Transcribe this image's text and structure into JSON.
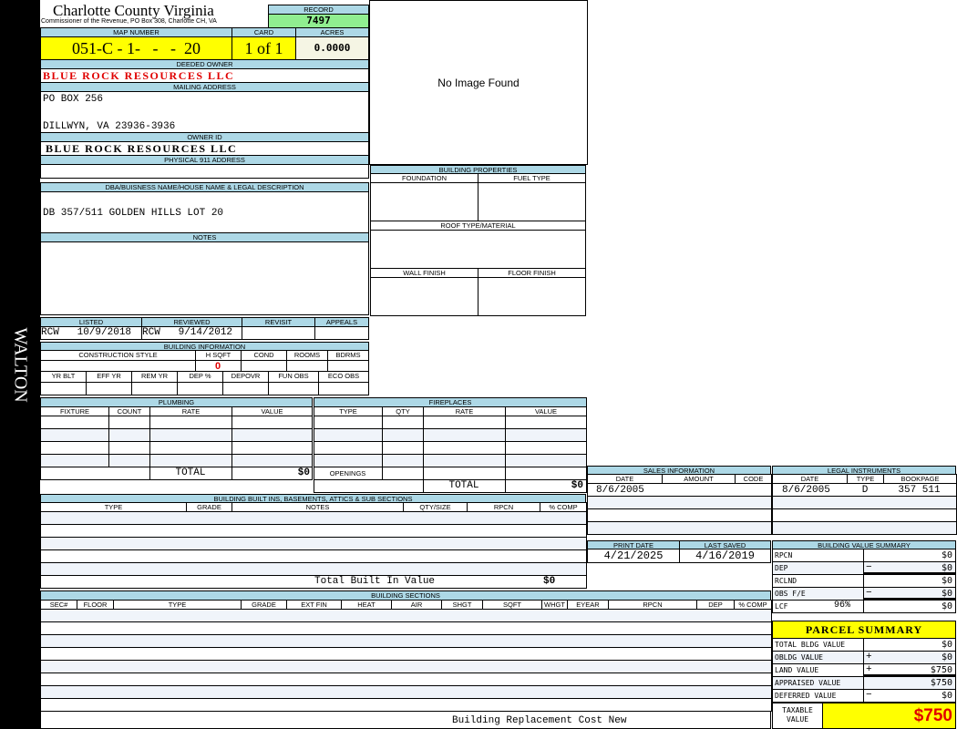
{
  "side_label": "WALTON",
  "header": {
    "title": "Charlotte County Virginia",
    "subtitle": "Commissioner of the Revenue, PO Box 308, Charlotte CH, VA"
  },
  "record": {
    "label": "RECORD",
    "value": "7497"
  },
  "map": {
    "label": "MAP NUMBER",
    "value": "051-C - 1-   -   -  20"
  },
  "card": {
    "label": "CARD",
    "value": "1 of 1"
  },
  "acres": {
    "label": "ACRES",
    "value": "0.0000"
  },
  "deeded_owner": {
    "label": "DEEDED OWNER",
    "value": "BLUE ROCK RESOURCES LLC"
  },
  "mailing": {
    "label": "MAILING ADDRESS",
    "line1": "PO BOX 256",
    "line2": "DILLWYN, VA 23936-3936"
  },
  "owner_id": {
    "label": "OWNER ID",
    "value": "BLUE ROCK RESOURCES LLC"
  },
  "physical": {
    "label": "PHYSICAL 911 ADDRESS",
    "value": ""
  },
  "image": {
    "text": "No Image Found"
  },
  "dba": {
    "label": "DBA/BUISNESS NAME/HOUSE NAME & LEGAL DESCRIPTION",
    "value": "DB 357/511 GOLDEN HILLS LOT 20"
  },
  "notes": {
    "label": "NOTES"
  },
  "building_properties": {
    "label": "BUILDING PROPERTIES",
    "foundation": "FOUNDATION",
    "fuel": "FUEL TYPE",
    "roof": "ROOF TYPE/MATERIAL",
    "wall": "WALL FINISH",
    "floor": "FLOOR FINISH"
  },
  "review": {
    "listed_label": "LISTED",
    "listed": "RCW   10/9/2018",
    "reviewed_label": "REVIEWED",
    "reviewed": "RCW   9/14/2012",
    "revisit_label": "REVISIT",
    "appeals_label": "APPEALS"
  },
  "building_info": {
    "label": "BUILDING INFORMATION",
    "cols1": [
      "CONSTRUCTION STYLE",
      "H SQFT",
      "COND",
      "ROOMS",
      "BDRMS"
    ],
    "hsqft": "0",
    "cols2": [
      "YR BLT",
      "EFF YR",
      "REM YR",
      "DEP %",
      "DEPOVR",
      "FUN OBS",
      "ECO OBS"
    ]
  },
  "plumbing": {
    "label": "PLUMBING",
    "cols": [
      "FIXTURE",
      "COUNT",
      "RATE",
      "VALUE"
    ],
    "total_label": "TOTAL",
    "total": "$0"
  },
  "fireplaces": {
    "label": "FIREPLACES",
    "cols": [
      "TYPE",
      "QTY",
      "RATE",
      "VALUE"
    ],
    "openings": "OPENINGS",
    "total_label": "TOTAL",
    "total": "$0"
  },
  "built_ins": {
    "label": "BUILDING BUILT INS, BASEMENTS, ATTICS & SUB SECTIONS",
    "cols": [
      "TYPE",
      "GRADE",
      "NOTES",
      "QTY/SIZE",
      "RPCN",
      "% COMP"
    ],
    "total_label": "Total Built In Value",
    "total": "$0"
  },
  "sections": {
    "label": "BUILDING SECTIONS",
    "cols": [
      "SEC#",
      "FLOOR",
      "TYPE",
      "GRADE",
      "EXT FIN",
      "HEAT",
      "AIR",
      "SHGT",
      "SQFT",
      "WHGT",
      "EYEAR",
      "RPCN",
      "DEP",
      "% COMP"
    ],
    "footer": "Building Replacement Cost New"
  },
  "sales": {
    "label": "SALES INFORMATION",
    "cols": [
      "DATE",
      "AMOUNT",
      "CODE"
    ],
    "rows": [
      [
        "8/6/2005",
        "",
        ""
      ]
    ]
  },
  "legal": {
    "label": "LEGAL INSTRUMENTS",
    "cols": [
      "DATE",
      "TYPE",
      "BOOKPAGE"
    ],
    "rows": [
      [
        "8/6/2005",
        "D",
        "357 511"
      ]
    ]
  },
  "dates": {
    "print_label": "PRINT DATE",
    "print": "4/21/2025",
    "saved_label": "LAST SAVED",
    "saved": "4/16/2019"
  },
  "bvs": {
    "label": "BUILDING VALUE SUMMARY",
    "rows": [
      {
        "label": "RPCN",
        "sign": "",
        "value": "$0"
      },
      {
        "label": "DEP",
        "sign": "−",
        "value": "$0"
      },
      {
        "label": "RCLND",
        "sign": "",
        "value": "$0"
      },
      {
        "label": "OBS F/E",
        "sign": "−",
        "value": "$0"
      },
      {
        "label": "LCF",
        "pct": "96%",
        "sign": "",
        "value": "$0"
      }
    ]
  },
  "parcel": {
    "label": "PARCEL SUMMARY",
    "rows": [
      {
        "label": "TOTAL BLDG VALUE",
        "sign": "",
        "value": "$0"
      },
      {
        "label": "OBLDG VALUE",
        "sign": "+",
        "value": "$0"
      },
      {
        "label": "LAND VALUE",
        "sign": "+",
        "value": "$750"
      },
      {
        "label": "APPRAISED VALUE",
        "sign": "",
        "value": "$750"
      },
      {
        "label": "DEFERRED VALUE",
        "sign": "−",
        "value": "$0"
      }
    ],
    "taxable_label": "TAXABLE VALUE",
    "taxable": "$750"
  },
  "colors": {
    "header": "#add8e6",
    "yellow": "#ffff00",
    "green": "#90ee90",
    "red": "#e00000"
  }
}
